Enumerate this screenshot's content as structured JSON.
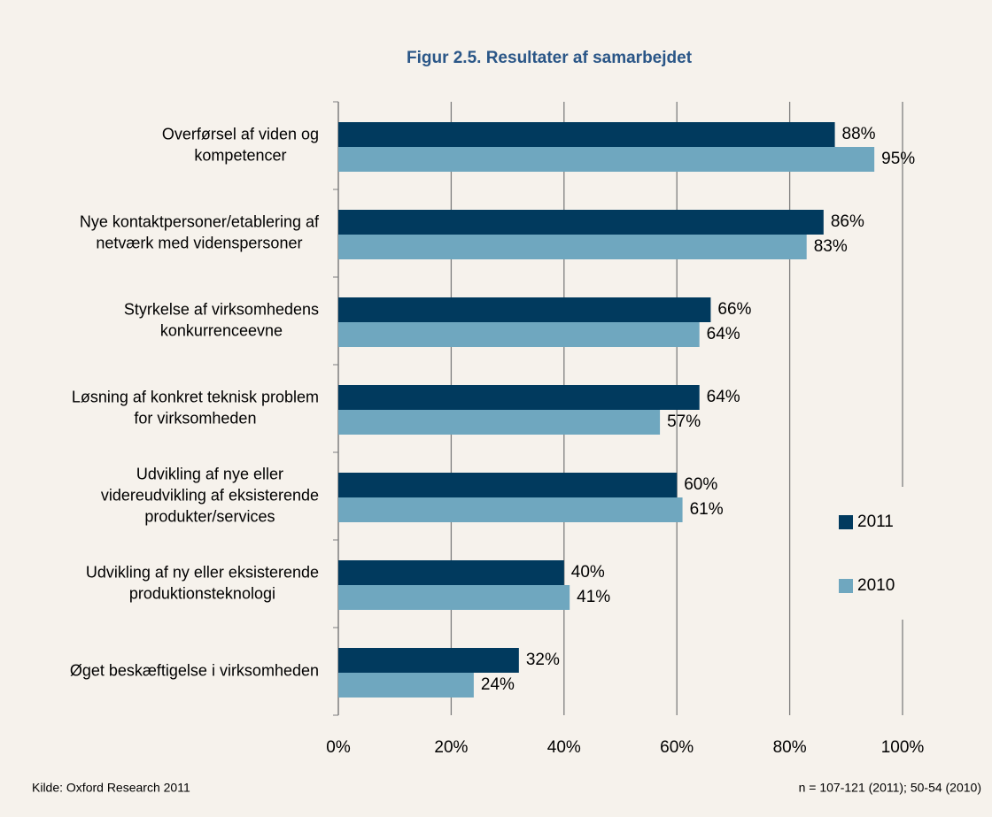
{
  "chart_data": {
    "type": "bar",
    "orientation": "horizontal",
    "title": "Figur 2.5. Resultater af samarbejdet",
    "categories": [
      [
        "Overførsel af viden og",
        "kompetencer"
      ],
      [
        "Nye kontaktpersoner/etablering af",
        "netværk med videnspersoner"
      ],
      [
        "Styrkelse af virksomhedens",
        "konkurrenceevne"
      ],
      [
        "Løsning af konkret teknisk problem",
        "for virksomheden"
      ],
      [
        "Udvikling af nye eller",
        "videreudvikling af eksisterende",
        "produkter/services"
      ],
      [
        "Udvikling af ny eller eksisterende",
        "produktionsteknologi"
      ],
      [
        "Øget beskæftigelse i virksomheden"
      ]
    ],
    "series": [
      {
        "name": "2011",
        "color": "#013a5e",
        "values": [
          88,
          86,
          66,
          64,
          60,
          40,
          32
        ],
        "value_labels": [
          "88%",
          "86%",
          "66%",
          "64%",
          "60%",
          "40%",
          "32%"
        ]
      },
      {
        "name": "2010",
        "color": "#6fa7bf",
        "values": [
          95,
          83,
          64,
          57,
          61,
          41,
          24
        ],
        "value_labels": [
          "95%",
          "83%",
          "64%",
          "57%",
          "61%",
          "41%",
          "24%"
        ]
      }
    ],
    "xlim": [
      0,
      100
    ],
    "xticks": [
      {
        "value": 0,
        "label": "0%"
      },
      {
        "value": 20,
        "label": "20%"
      },
      {
        "value": 40,
        "label": "40%"
      },
      {
        "value": 60,
        "label": "60%"
      },
      {
        "value": 80,
        "label": "80%"
      },
      {
        "value": 100,
        "label": "100%"
      }
    ],
    "grid": true,
    "legend": "right",
    "source": "Kilde: Oxford Research 2011",
    "note": "n = 107-121 (2011); 50-54 (2010)"
  }
}
